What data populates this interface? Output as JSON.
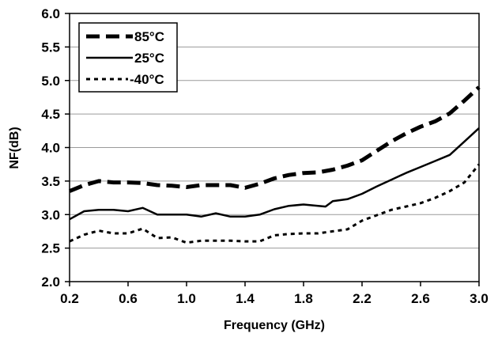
{
  "chart_data": {
    "type": "line",
    "title": "",
    "xlabel": "Frequency (GHz)",
    "ylabel": "NF(dB)",
    "xlim": [
      0.2,
      3.0
    ],
    "ylim": [
      2.0,
      6.0
    ],
    "xticks": [
      "0.2",
      "0.6",
      "1.0",
      "1.4",
      "1.8",
      "2.2",
      "2.6",
      "3.0"
    ],
    "yticks": [
      "2.0",
      "2.5",
      "3.0",
      "3.5",
      "4.0",
      "4.5",
      "5.0",
      "5.5",
      "6.0"
    ],
    "grid": "horizontal",
    "legend_position": "top-left",
    "series": [
      {
        "name": "85°C",
        "style": "long-dash",
        "x": [
          0.2,
          0.3,
          0.4,
          0.5,
          0.6,
          0.7,
          0.8,
          0.9,
          1.0,
          1.1,
          1.2,
          1.3,
          1.4,
          1.5,
          1.6,
          1.7,
          1.8,
          1.9,
          2.0,
          2.1,
          2.2,
          2.3,
          2.4,
          2.5,
          2.6,
          2.7,
          2.8,
          2.9,
          3.0
        ],
        "y": [
          3.35,
          3.44,
          3.5,
          3.48,
          3.48,
          3.47,
          3.44,
          3.43,
          3.41,
          3.44,
          3.44,
          3.44,
          3.4,
          3.46,
          3.54,
          3.59,
          3.62,
          3.63,
          3.67,
          3.73,
          3.81,
          3.95,
          4.09,
          4.21,
          4.31,
          4.39,
          4.51,
          4.7,
          4.9
        ]
      },
      {
        "name": "25°C",
        "style": "solid",
        "x": [
          0.2,
          0.3,
          0.4,
          0.5,
          0.6,
          0.7,
          0.8,
          0.9,
          1.0,
          1.1,
          1.2,
          1.3,
          1.4,
          1.5,
          1.6,
          1.7,
          1.8,
          1.9,
          1.95,
          2.0,
          2.1,
          2.2,
          2.3,
          2.4,
          2.5,
          2.6,
          2.7,
          2.8,
          2.9,
          3.0
        ],
        "y": [
          2.93,
          3.05,
          3.07,
          3.07,
          3.05,
          3.1,
          3.0,
          3.0,
          3.0,
          2.97,
          3.02,
          2.97,
          2.97,
          3.0,
          3.08,
          3.13,
          3.15,
          3.13,
          3.12,
          3.2,
          3.23,
          3.31,
          3.42,
          3.52,
          3.62,
          3.71,
          3.8,
          3.89,
          4.09,
          4.29
        ]
      },
      {
        "name": "-40°C",
        "style": "dotted",
        "x": [
          0.2,
          0.3,
          0.4,
          0.5,
          0.6,
          0.7,
          0.8,
          0.9,
          1.0,
          1.1,
          1.2,
          1.3,
          1.4,
          1.5,
          1.6,
          1.7,
          1.8,
          1.9,
          2.0,
          2.1,
          2.2,
          2.3,
          2.4,
          2.5,
          2.6,
          2.7,
          2.8,
          2.9,
          3.0
        ],
        "y": [
          2.6,
          2.7,
          2.76,
          2.72,
          2.72,
          2.79,
          2.65,
          2.66,
          2.58,
          2.61,
          2.61,
          2.61,
          2.6,
          2.6,
          2.69,
          2.71,
          2.72,
          2.72,
          2.75,
          2.78,
          2.91,
          2.99,
          3.07,
          3.12,
          3.17,
          3.25,
          3.35,
          3.48,
          3.75
        ]
      }
    ]
  },
  "colors": {
    "line": "#000000",
    "grid": "#9a9a9a",
    "background": "#ffffff"
  }
}
